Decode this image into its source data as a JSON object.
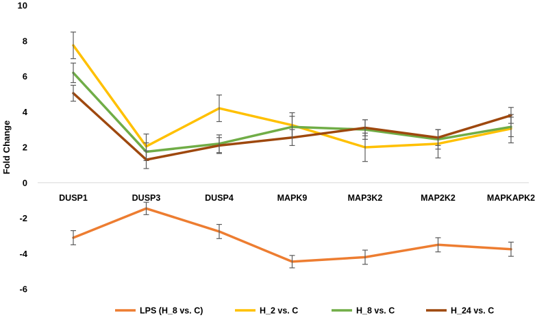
{
  "chart_data": {
    "type": "line",
    "title": "",
    "xlabel": "",
    "ylabel": "Fold Change",
    "ylim": [
      -6,
      10
    ],
    "yticks": [
      -6,
      -4,
      -2,
      0,
      2,
      4,
      6,
      8,
      10
    ],
    "ytick_labels": [
      "-6",
      "-4",
      "-2",
      "0",
      "2",
      "4",
      "6",
      "8",
      "10"
    ],
    "grid": false,
    "legend_position": "bottom",
    "categories": [
      "DUSP1",
      "DUSP3",
      "DUSP4",
      "MAPK9",
      "MAP3K2",
      "MAP2K2",
      "MAPKAPK2"
    ],
    "series": [
      {
        "name": "LPS (H_8 vs. C)",
        "color": "#ED7D31",
        "values": [
          -3.1,
          -1.45,
          -2.75,
          -4.45,
          -4.2,
          -3.5,
          -3.75
        ],
        "errors": [
          0.4,
          0.35,
          0.4,
          0.35,
          0.4,
          0.4,
          0.4
        ]
      },
      {
        "name": "H_2 vs. C",
        "color": "#FFC000",
        "values": [
          7.75,
          2.05,
          4.2,
          3.25,
          2.0,
          2.2,
          3.05
        ],
        "errors": [
          0.75,
          0.7,
          0.75,
          0.7,
          0.8,
          0.8,
          0.8
        ]
      },
      {
        "name": "H_8 vs. C",
        "color": "#70AD47",
        "values": [
          6.2,
          1.75,
          2.2,
          3.15,
          3.0,
          2.45,
          3.15
        ],
        "errors": [
          0.55,
          0.5,
          0.5,
          0.6,
          0.55,
          0.55,
          0.55
        ]
      },
      {
        "name": "H_24 vs. C",
        "color": "#9E480E",
        "values": [
          5.05,
          1.3,
          2.1,
          2.55,
          3.1,
          2.55,
          3.8
        ],
        "errors": [
          0.45,
          0.5,
          0.45,
          0.45,
          0.45,
          0.45,
          0.45
        ]
      }
    ]
  }
}
